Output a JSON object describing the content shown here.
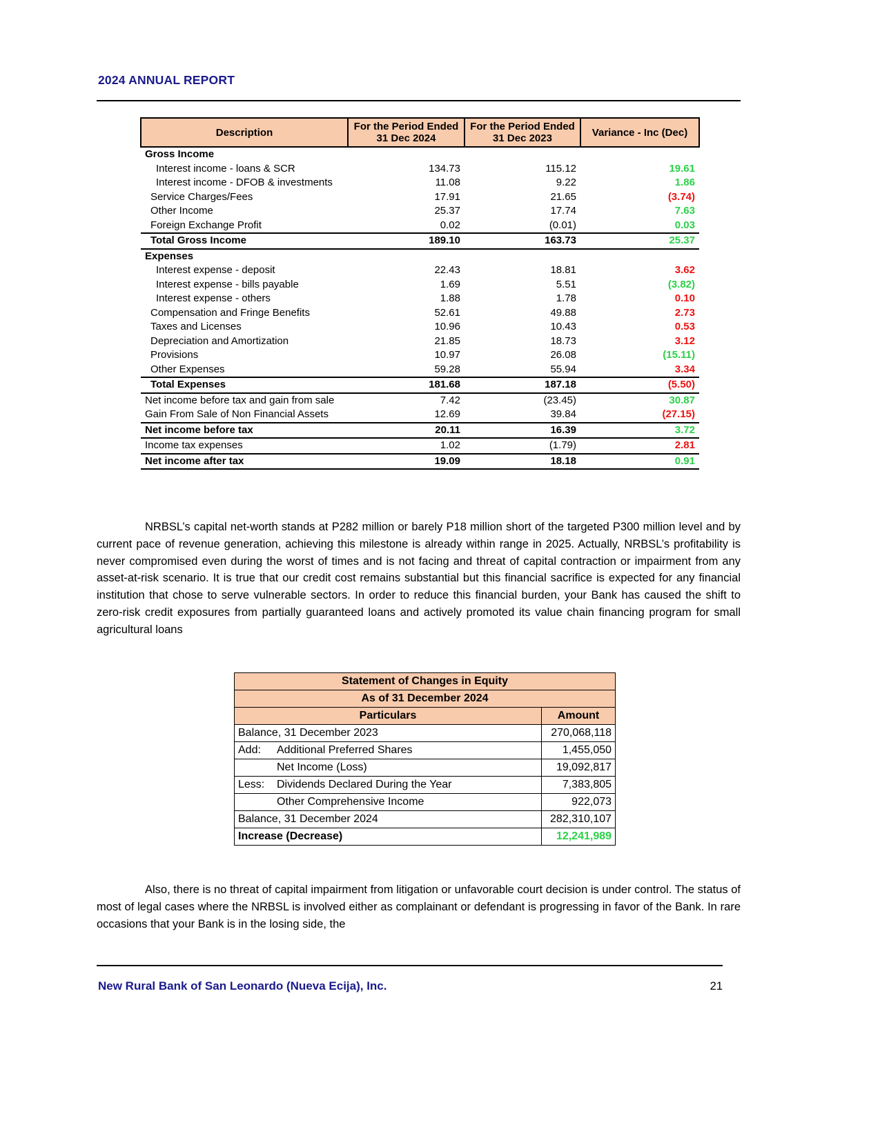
{
  "colors": {
    "navy": "#1a1a8c",
    "table_header_bg": "#f8cbad",
    "positive_green": "#2bd148",
    "negative_red": "#ee1111"
  },
  "header": {
    "title": "2024 ANNUAL REPORT"
  },
  "income_statement": {
    "columns": [
      {
        "lines": [
          "Description"
        ]
      },
      {
        "lines": [
          "For the Period Ended",
          "31 Dec 2024"
        ]
      },
      {
        "lines": [
          "For the Period Ended",
          "31 Dec 2023"
        ]
      },
      {
        "lines": [
          "Variance - Inc (Dec)"
        ]
      }
    ],
    "rows": [
      {
        "label": "Gross Income",
        "indent": 0,
        "bold": true,
        "v2024": "",
        "v2023": "",
        "variance": "",
        "variance_color": ""
      },
      {
        "label": "Interest income - loans & SCR",
        "indent": 2,
        "bold": false,
        "v2024": "134.73",
        "v2023": "115.12",
        "variance": "19.61",
        "variance_color": "green"
      },
      {
        "label": "Interest income - DFOB & investments",
        "indent": 2,
        "bold": false,
        "v2024": "11.08",
        "v2023": "9.22",
        "variance": "1.86",
        "variance_color": "green"
      },
      {
        "label": "Service Charges/Fees",
        "indent": 1,
        "bold": false,
        "v2024": "17.91",
        "v2023": "21.65",
        "variance": "(3.74)",
        "variance_color": "red"
      },
      {
        "label": "Other Income",
        "indent": 1,
        "bold": false,
        "v2024": "25.37",
        "v2023": "17.74",
        "variance": "7.63",
        "variance_color": "green"
      },
      {
        "label": "Foreign Exchange Profit",
        "indent": 1,
        "bold": false,
        "v2024": "0.02",
        "v2023": "(0.01)",
        "variance": "0.03",
        "variance_color": "green",
        "line_below": true
      },
      {
        "label": "Total Gross Income",
        "indent": 1,
        "bold": true,
        "v2024": "189.10",
        "v2023": "163.73",
        "variance": "25.37",
        "variance_color": "green",
        "line_below": true
      },
      {
        "label": "Expenses",
        "indent": 0,
        "bold": true,
        "v2024": "",
        "v2023": "",
        "variance": "",
        "variance_color": ""
      },
      {
        "label": "Interest expense - deposit",
        "indent": 2,
        "bold": false,
        "v2024": "22.43",
        "v2023": "18.81",
        "variance": "3.62",
        "variance_color": "red"
      },
      {
        "label": "Interest expense - bills payable",
        "indent": 2,
        "bold": false,
        "v2024": "1.69",
        "v2023": "5.51",
        "variance": "(3.82)",
        "variance_color": "green"
      },
      {
        "label": "Interest expense - others",
        "indent": 2,
        "bold": false,
        "v2024": "1.88",
        "v2023": "1.78",
        "variance": "0.10",
        "variance_color": "red"
      },
      {
        "label": "Compensation and Fringe Benefits",
        "indent": 1,
        "bold": false,
        "v2024": "52.61",
        "v2023": "49.88",
        "variance": "2.73",
        "variance_color": "red"
      },
      {
        "label": "Taxes and Licenses",
        "indent": 1,
        "bold": false,
        "v2024": "10.96",
        "v2023": "10.43",
        "variance": "0.53",
        "variance_color": "red"
      },
      {
        "label": "Depreciation and Amortization",
        "indent": 1,
        "bold": false,
        "v2024": "21.85",
        "v2023": "18.73",
        "variance": "3.12",
        "variance_color": "red"
      },
      {
        "label": "Provisions",
        "indent": 1,
        "bold": false,
        "v2024": "10.97",
        "v2023": "26.08",
        "variance": "(15.11)",
        "variance_color": "green"
      },
      {
        "label": "Other Expenses",
        "indent": 1,
        "bold": false,
        "v2024": "59.28",
        "v2023": "55.94",
        "variance": "3.34",
        "variance_color": "red",
        "line_below": true
      },
      {
        "label": "Total Expenses",
        "indent": 1,
        "bold": true,
        "v2024": "181.68",
        "v2023": "187.18",
        "variance": "(5.50)",
        "variance_color": "red",
        "line_below": true
      },
      {
        "label": "Net income before tax and gain from sale",
        "indent": 0,
        "bold": false,
        "v2024": "7.42",
        "v2023": "(23.45)",
        "variance": "30.87",
        "variance_color": "green"
      },
      {
        "label": "Gain From Sale of Non Financial Assets",
        "indent": 0,
        "bold": false,
        "v2024": "12.69",
        "v2023": "39.84",
        "variance": "(27.15)",
        "variance_color": "red",
        "line_below": true
      },
      {
        "label": "Net income before tax",
        "indent": 0,
        "bold": true,
        "v2024": "20.11",
        "v2023": "16.39",
        "variance": "3.72",
        "variance_color": "green",
        "line_below": true
      },
      {
        "label": "Income tax expenses",
        "indent": 0,
        "bold": false,
        "v2024": "1.02",
        "v2023": "(1.79)",
        "variance": "2.81",
        "variance_color": "red",
        "line_below": true
      },
      {
        "label": "Net income after tax",
        "indent": 0,
        "bold": true,
        "v2024": "19.09",
        "v2023": "18.18",
        "variance": "0.91",
        "variance_color": "green",
        "line_below": true
      }
    ]
  },
  "paragraphs": {
    "capital": "NRBSL’s capital net-worth stands at P282 million or barely P18 million short of the targeted P300 million level and by current pace of revenue generation, achieving this milestone is already within range in 2025. Actually, NRBSL’s profitability is never compromised even during the worst of times and is not facing and threat of capital contraction or impairment from any asset-at-risk scenario. It is true that our credit cost remains substantial but this financial sacrifice is expected for any financial institution that chose to serve vulnerable sectors. In order to reduce this financial burden, your Bank has caused the shift to zero-risk credit exposures from partially guaranteed loans and actively promoted its value chain financing program for small agricultural loans",
    "legal": "Also, there is no threat of capital impairment from litigation or unfavorable court decision is under control. The status of most of legal cases where the NRBSL is involved either as complainant or defendant is progressing in favor of the Bank. In rare occasions that your Bank is in the losing side, the"
  },
  "equity_statement": {
    "title": "Statement of Changes in Equity",
    "subtitle": "As of 31 December 2024",
    "col_particulars": "Particulars",
    "col_amount": "Amount",
    "rows": [
      {
        "prefix": "",
        "label": "Balance, 31 December 2023",
        "indent": 0,
        "amount": "270,068,118"
      },
      {
        "prefix": "Add:",
        "label": "Additional Preferred Shares",
        "indent": 0,
        "amount": "1,455,050"
      },
      {
        "prefix": "",
        "label": "Net Income (Loss)",
        "indent": 1,
        "amount": "19,092,817"
      },
      {
        "prefix": "Less:",
        "label": "Dividends Declared During the Year",
        "indent": 0,
        "amount": "7,383,805"
      },
      {
        "prefix": "",
        "label": "Other Comprehensive Income",
        "indent": 1,
        "amount": "922,073"
      },
      {
        "prefix": "",
        "label": "Balance, 31 December 2024",
        "indent": 0,
        "amount": "282,310,107"
      },
      {
        "prefix": "",
        "label": "Increase (Decrease)",
        "indent": 0,
        "amount": "12,241,989",
        "bold": true,
        "amount_color": "green"
      }
    ]
  },
  "footer": {
    "bank_name": "New Rural Bank of San Leonardo (Nueva Ecija), Inc.",
    "page_number": "21"
  }
}
